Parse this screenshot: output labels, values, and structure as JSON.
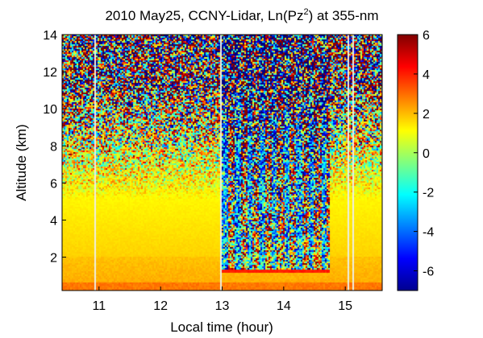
{
  "chart_data": {
    "type": "heatmap",
    "title_text": "2010 May25, CCNY-Lidar, Ln(Pz",
    "title_sup": "2",
    "title_tail": ") at 355-nm",
    "xlabel": "Local time (hour)",
    "ylabel": "Altitude (km)",
    "xlim": [
      10.4,
      15.6
    ],
    "ylim": [
      0.2,
      14
    ],
    "x_ticks": [
      11,
      12,
      13,
      14,
      15
    ],
    "y_ticks": [
      2,
      4,
      6,
      8,
      10,
      12,
      14
    ],
    "colorbar": {
      "range": [
        -7,
        6
      ],
      "ticks": [
        6,
        4,
        2,
        0,
        -2,
        -4,
        -6
      ]
    },
    "colormap": "jet",
    "gap_times": [
      10.94,
      12.98,
      15.05,
      15.12
    ],
    "cloud_times": [
      13.05,
      13.25,
      13.45,
      13.65,
      13.85,
      14.05,
      14.25,
      14.45,
      14.65
    ],
    "cloud_base_km": 1.3,
    "boundary_layer_top_km": 2.0,
    "grid": false
  }
}
